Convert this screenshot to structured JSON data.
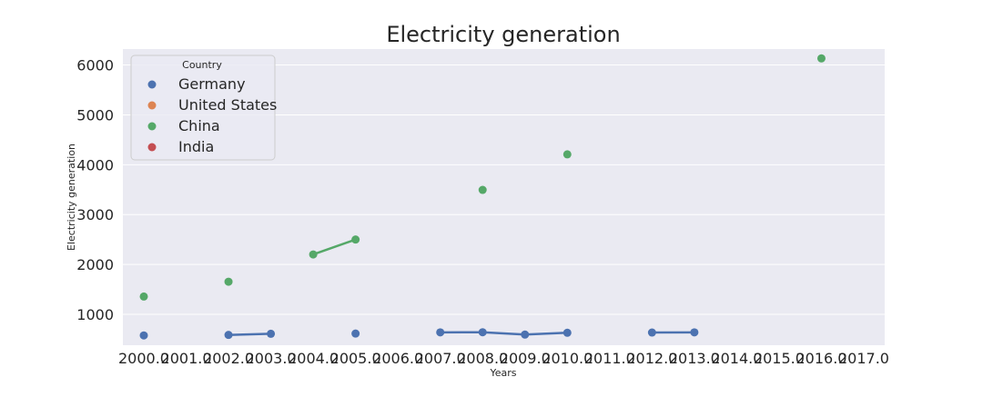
{
  "chart_data": {
    "type": "line",
    "title": "Electricity generation",
    "xlabel": "Years",
    "ylabel": "Electricity generation",
    "x_ticks": [
      "2000.0",
      "2001.0",
      "2002.0",
      "2003.0",
      "2004.0",
      "2005.0",
      "2006.0",
      "2007.0",
      "2008.0",
      "2009.0",
      "2010.0",
      "2011.0",
      "2012.0",
      "2013.0",
      "2014.0",
      "2015.0",
      "2016.0",
      "2017.0"
    ],
    "y_ticks": [
      "1000",
      "2000",
      "3000",
      "4000",
      "5000",
      "6000"
    ],
    "xlim": [
      2000,
      2017
    ],
    "ylim": [
      380,
      6320
    ],
    "grid": true,
    "markers": "point with line segments between consecutive years",
    "legend": {
      "title": "Country",
      "placement": "upper-left",
      "entries": [
        "Germany",
        "United States",
        "China",
        "India"
      ]
    },
    "series": [
      {
        "name": "Germany",
        "color": "#4c72b0",
        "points": [
          {
            "x": 2000,
            "y": 577
          },
          {
            "x": 2002,
            "y": 587
          },
          {
            "x": 2003,
            "y": 609
          },
          {
            "x": 2005,
            "y": 614
          },
          {
            "x": 2007,
            "y": 638
          },
          {
            "x": 2008,
            "y": 640
          },
          {
            "x": 2009,
            "y": 593
          },
          {
            "x": 2010,
            "y": 630
          },
          {
            "x": 2012,
            "y": 634
          },
          {
            "x": 2013,
            "y": 638
          }
        ]
      },
      {
        "name": "United States",
        "color": "#dd8452",
        "points": []
      },
      {
        "name": "China",
        "color": "#55a868",
        "points": [
          {
            "x": 2000,
            "y": 1356
          },
          {
            "x": 2002,
            "y": 1654
          },
          {
            "x": 2004,
            "y": 2200
          },
          {
            "x": 2005,
            "y": 2500
          },
          {
            "x": 2008,
            "y": 3495
          },
          {
            "x": 2010,
            "y": 4208
          },
          {
            "x": 2016,
            "y": 6133
          }
        ]
      },
      {
        "name": "India",
        "color": "#c44e52",
        "points": []
      }
    ]
  }
}
